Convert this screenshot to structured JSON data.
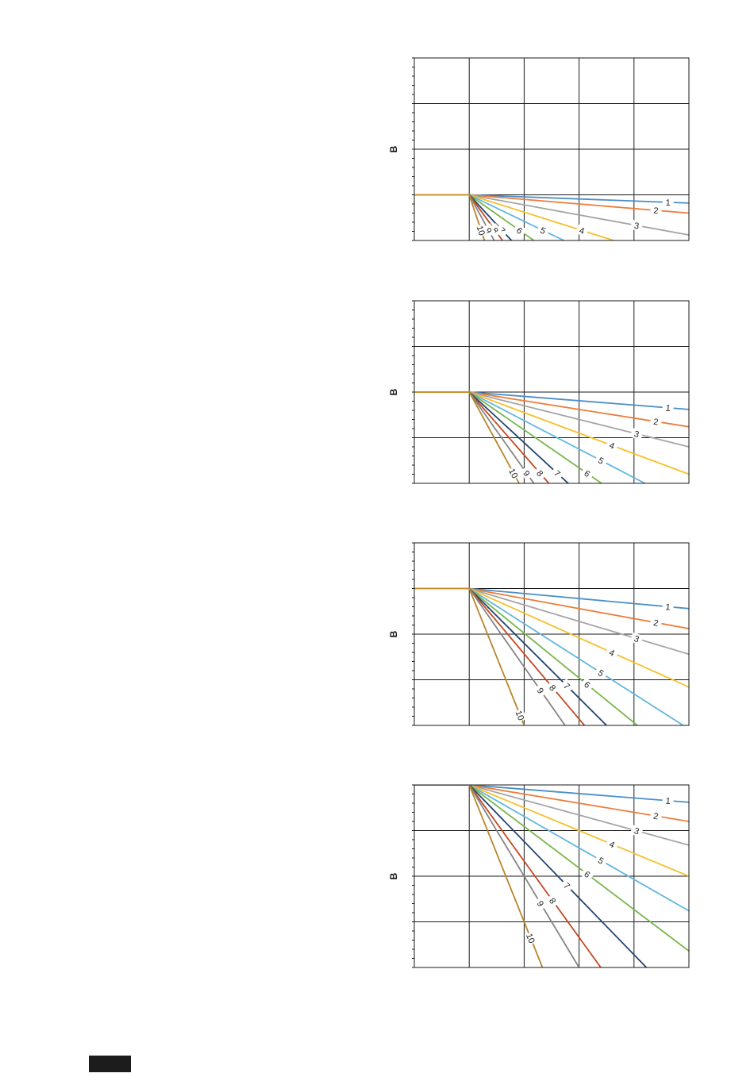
{
  "colors": {
    "1": "#4a8fc8",
    "2": "#ee7d3b",
    "3": "#a5a5a5",
    "4": "#f6c02d",
    "5": "#63b6dd",
    "6": "#78b64b",
    "7": "#23446e",
    "8": "#c34a24",
    "9": "#858585",
    "10": "#b8862c"
  },
  "chart_data": [
    {
      "type": "line",
      "ylabel": "B",
      "xlim": [
        0,
        5
      ],
      "ylim": [
        0,
        4
      ],
      "grid": true,
      "flat": {
        "x": [
          0,
          1
        ],
        "y": 1
      },
      "series": [
        {
          "name": "1",
          "slope": -0.045
        },
        {
          "name": "2",
          "slope": -0.1
        },
        {
          "name": "3",
          "slope": -0.22
        },
        {
          "name": "4",
          "slope": -0.38
        },
        {
          "name": "5",
          "slope": -0.58
        },
        {
          "name": "6",
          "slope": -0.85
        },
        {
          "name": "7",
          "slope": -1.3
        },
        {
          "name": "8",
          "slope": -1.65
        },
        {
          "name": "9",
          "slope": -2.2
        },
        {
          "name": "10",
          "slope": -3.6
        }
      ]
    },
    {
      "type": "line",
      "ylabel": "B",
      "xlim": [
        0,
        5
      ],
      "ylim": [
        0,
        4
      ],
      "grid": true,
      "flat": {
        "x": [
          0,
          1
        ],
        "y": 2
      },
      "series": [
        {
          "name": "1",
          "slope": -0.095
        },
        {
          "name": "2",
          "slope": -0.19
        },
        {
          "name": "3",
          "slope": -0.3
        },
        {
          "name": "4",
          "slope": -0.45
        },
        {
          "name": "5",
          "slope": -0.625
        },
        {
          "name": "6",
          "slope": -0.83
        },
        {
          "name": "7",
          "slope": -1.11
        },
        {
          "name": "8",
          "slope": -1.38
        },
        {
          "name": "9",
          "slope": -1.7
        },
        {
          "name": "10",
          "slope": -2.2
        }
      ]
    },
    {
      "type": "line",
      "ylabel": "B",
      "xlim": [
        0,
        5
      ],
      "ylim": [
        0,
        4
      ],
      "grid": true,
      "flat": {
        "x": [
          0,
          1
        ],
        "y": 3
      },
      "series": [
        {
          "name": "1",
          "slope": -0.11
        },
        {
          "name": "2",
          "slope": -0.22
        },
        {
          "name": "3",
          "slope": -0.36
        },
        {
          "name": "4",
          "slope": -0.54
        },
        {
          "name": "5",
          "slope": -0.77
        },
        {
          "name": "6",
          "slope": -0.98
        },
        {
          "name": "7",
          "slope": -1.2
        },
        {
          "name": "8",
          "slope": -1.43
        },
        {
          "name": "9",
          "slope": -1.72
        },
        {
          "name": "10",
          "slope": -3.0
        }
      ]
    },
    {
      "type": "line",
      "ylabel": "B",
      "xlim": [
        0,
        5
      ],
      "ylim": [
        0,
        4
      ],
      "grid": true,
      "flat": {
        "x": [
          0,
          1
        ],
        "y": 4
      },
      "series": [
        {
          "name": "1",
          "slope": -0.095
        },
        {
          "name": "2",
          "slope": -0.2
        },
        {
          "name": "3",
          "slope": -0.33
        },
        {
          "name": "4",
          "slope": -0.5
        },
        {
          "name": "5",
          "slope": -0.69
        },
        {
          "name": "6",
          "slope": -0.91
        },
        {
          "name": "7",
          "slope": -1.24
        },
        {
          "name": "8",
          "slope": -1.67
        },
        {
          "name": "9",
          "slope": -2.0
        },
        {
          "name": "10",
          "slope": -3.0
        }
      ]
    }
  ]
}
